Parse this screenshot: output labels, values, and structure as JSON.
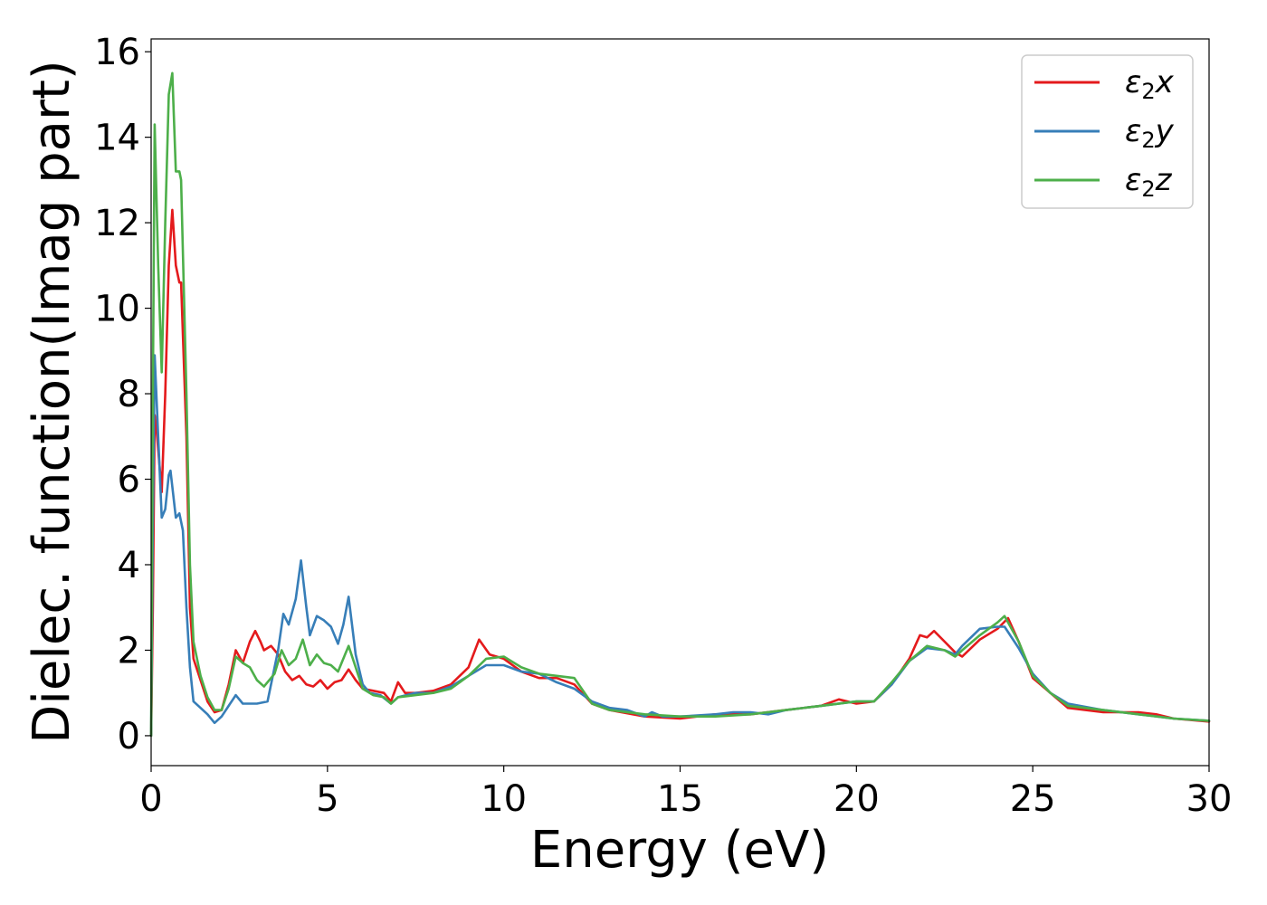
{
  "chart_data": {
    "type": "line",
    "xlabel": "Energy (eV)",
    "ylabel": "Dielec. function(Imag part)",
    "xlim": [
      0,
      30
    ],
    "ylim": [
      -0.7,
      16.3
    ],
    "xticks": [
      0,
      5,
      10,
      15,
      20,
      25,
      30
    ],
    "yticks": [
      0,
      2,
      4,
      6,
      8,
      10,
      12,
      14,
      16
    ],
    "grid": false,
    "legend_position": "top-right",
    "series": [
      {
        "name": "ε2x",
        "legend_base": "ε",
        "legend_sub": "2",
        "legend_suffix": "x",
        "color": "#e41a1c",
        "points": [
          [
            0,
            0
          ],
          [
            0.05,
            3
          ],
          [
            0.1,
            7.5
          ],
          [
            0.15,
            7.2
          ],
          [
            0.3,
            5.7
          ],
          [
            0.4,
            8
          ],
          [
            0.5,
            11
          ],
          [
            0.6,
            12.3
          ],
          [
            0.7,
            11
          ],
          [
            0.8,
            10.6
          ],
          [
            0.85,
            10.6
          ],
          [
            1.0,
            7
          ],
          [
            1.1,
            3
          ],
          [
            1.2,
            1.8
          ],
          [
            1.4,
            1.3
          ],
          [
            1.6,
            0.8
          ],
          [
            1.8,
            0.55
          ],
          [
            2.0,
            0.6
          ],
          [
            2.2,
            1.2
          ],
          [
            2.4,
            2.0
          ],
          [
            2.6,
            1.7
          ],
          [
            2.8,
            2.2
          ],
          [
            2.95,
            2.45
          ],
          [
            3.1,
            2.2
          ],
          [
            3.2,
            2.0
          ],
          [
            3.4,
            2.1
          ],
          [
            3.6,
            1.9
          ],
          [
            3.8,
            1.5
          ],
          [
            4.0,
            1.3
          ],
          [
            4.2,
            1.4
          ],
          [
            4.4,
            1.2
          ],
          [
            4.6,
            1.15
          ],
          [
            4.8,
            1.3
          ],
          [
            5.0,
            1.1
          ],
          [
            5.2,
            1.25
          ],
          [
            5.4,
            1.3
          ],
          [
            5.6,
            1.55
          ],
          [
            5.8,
            1.3
          ],
          [
            6.0,
            1.1
          ],
          [
            6.3,
            1.05
          ],
          [
            6.6,
            1.0
          ],
          [
            6.8,
            0.8
          ],
          [
            7.0,
            1.25
          ],
          [
            7.2,
            1.0
          ],
          [
            7.5,
            1.0
          ],
          [
            8.0,
            1.05
          ],
          [
            8.5,
            1.2
          ],
          [
            9.0,
            1.6
          ],
          [
            9.3,
            2.25
          ],
          [
            9.6,
            1.9
          ],
          [
            10.0,
            1.8
          ],
          [
            10.5,
            1.5
          ],
          [
            11.0,
            1.35
          ],
          [
            11.5,
            1.35
          ],
          [
            12.0,
            1.2
          ],
          [
            12.5,
            0.75
          ],
          [
            13.0,
            0.6
          ],
          [
            14.0,
            0.45
          ],
          [
            15.0,
            0.4
          ],
          [
            16.0,
            0.5
          ],
          [
            17.0,
            0.5
          ],
          [
            18.0,
            0.6
          ],
          [
            19.0,
            0.7
          ],
          [
            19.5,
            0.85
          ],
          [
            20.0,
            0.75
          ],
          [
            20.5,
            0.8
          ],
          [
            21.0,
            1.2
          ],
          [
            21.5,
            1.8
          ],
          [
            21.8,
            2.35
          ],
          [
            22.0,
            2.3
          ],
          [
            22.2,
            2.45
          ],
          [
            22.5,
            2.2
          ],
          [
            22.8,
            1.95
          ],
          [
            23.0,
            1.85
          ],
          [
            23.5,
            2.25
          ],
          [
            24.0,
            2.5
          ],
          [
            24.3,
            2.75
          ],
          [
            24.6,
            2.2
          ],
          [
            25.0,
            1.35
          ],
          [
            25.5,
            1.0
          ],
          [
            26.0,
            0.65
          ],
          [
            27.0,
            0.55
          ],
          [
            28.0,
            0.55
          ],
          [
            28.5,
            0.5
          ],
          [
            29.0,
            0.4
          ],
          [
            30.0,
            0.33
          ]
        ]
      },
      {
        "name": "ε2y",
        "legend_base": "ε",
        "legend_sub": "2",
        "legend_suffix": "y",
        "color": "#377eb8",
        "points": [
          [
            0,
            0
          ],
          [
            0.05,
            5
          ],
          [
            0.1,
            8.9
          ],
          [
            0.2,
            7
          ],
          [
            0.3,
            5.1
          ],
          [
            0.4,
            5.3
          ],
          [
            0.5,
            6.1
          ],
          [
            0.55,
            6.2
          ],
          [
            0.7,
            5.1
          ],
          [
            0.8,
            5.2
          ],
          [
            0.9,
            4.8
          ],
          [
            1.0,
            3
          ],
          [
            1.1,
            1.6
          ],
          [
            1.2,
            0.8
          ],
          [
            1.4,
            0.65
          ],
          [
            1.6,
            0.5
          ],
          [
            1.8,
            0.3
          ],
          [
            2.0,
            0.45
          ],
          [
            2.2,
            0.7
          ],
          [
            2.4,
            0.95
          ],
          [
            2.6,
            0.75
          ],
          [
            3.0,
            0.75
          ],
          [
            3.3,
            0.8
          ],
          [
            3.6,
            2.0
          ],
          [
            3.75,
            2.85
          ],
          [
            3.9,
            2.6
          ],
          [
            4.1,
            3.2
          ],
          [
            4.25,
            4.1
          ],
          [
            4.4,
            3.0
          ],
          [
            4.5,
            2.35
          ],
          [
            4.7,
            2.8
          ],
          [
            4.9,
            2.7
          ],
          [
            5.1,
            2.55
          ],
          [
            5.3,
            2.15
          ],
          [
            5.45,
            2.6
          ],
          [
            5.6,
            3.25
          ],
          [
            5.8,
            1.9
          ],
          [
            6.0,
            1.2
          ],
          [
            6.2,
            1.0
          ],
          [
            6.5,
            0.95
          ],
          [
            6.8,
            0.75
          ],
          [
            7.0,
            0.9
          ],
          [
            7.5,
            1.0
          ],
          [
            8.0,
            1.0
          ],
          [
            8.5,
            1.15
          ],
          [
            9.0,
            1.4
          ],
          [
            9.5,
            1.65
          ],
          [
            10.0,
            1.65
          ],
          [
            10.5,
            1.5
          ],
          [
            11.0,
            1.45
          ],
          [
            11.5,
            1.25
          ],
          [
            12.0,
            1.1
          ],
          [
            12.5,
            0.8
          ],
          [
            13.0,
            0.65
          ],
          [
            13.5,
            0.6
          ],
          [
            14.0,
            0.45
          ],
          [
            14.2,
            0.55
          ],
          [
            14.5,
            0.45
          ],
          [
            15.0,
            0.45
          ],
          [
            16.0,
            0.5
          ],
          [
            16.5,
            0.55
          ],
          [
            17.0,
            0.55
          ],
          [
            17.5,
            0.5
          ],
          [
            18.0,
            0.6
          ],
          [
            19.0,
            0.7
          ],
          [
            20.0,
            0.8
          ],
          [
            20.5,
            0.8
          ],
          [
            21.0,
            1.2
          ],
          [
            21.5,
            1.75
          ],
          [
            22.0,
            2.05
          ],
          [
            22.5,
            2.0
          ],
          [
            22.8,
            1.9
          ],
          [
            23.0,
            2.1
          ],
          [
            23.5,
            2.5
          ],
          [
            24.0,
            2.55
          ],
          [
            24.2,
            2.55
          ],
          [
            24.6,
            2.05
          ],
          [
            25.0,
            1.45
          ],
          [
            25.5,
            1.0
          ],
          [
            26.0,
            0.75
          ],
          [
            27.0,
            0.6
          ],
          [
            28.0,
            0.5
          ],
          [
            29.0,
            0.4
          ],
          [
            30.0,
            0.35
          ]
        ]
      },
      {
        "name": "ε2z",
        "legend_base": "ε",
        "legend_sub": "2",
        "legend_suffix": "z",
        "color": "#4daf4a",
        "points": [
          [
            0,
            0
          ],
          [
            0.05,
            8
          ],
          [
            0.1,
            14.3
          ],
          [
            0.2,
            11
          ],
          [
            0.3,
            8.5
          ],
          [
            0.4,
            12
          ],
          [
            0.5,
            15
          ],
          [
            0.6,
            15.5
          ],
          [
            0.7,
            13.2
          ],
          [
            0.8,
            13.2
          ],
          [
            0.85,
            13.0
          ],
          [
            1.0,
            8
          ],
          [
            1.1,
            4
          ],
          [
            1.2,
            2.2
          ],
          [
            1.4,
            1.4
          ],
          [
            1.6,
            0.9
          ],
          [
            1.8,
            0.6
          ],
          [
            2.0,
            0.6
          ],
          [
            2.2,
            1.1
          ],
          [
            2.4,
            1.85
          ],
          [
            2.6,
            1.7
          ],
          [
            2.8,
            1.6
          ],
          [
            3.0,
            1.3
          ],
          [
            3.2,
            1.15
          ],
          [
            3.5,
            1.45
          ],
          [
            3.7,
            2.0
          ],
          [
            3.9,
            1.65
          ],
          [
            4.1,
            1.8
          ],
          [
            4.3,
            2.25
          ],
          [
            4.5,
            1.65
          ],
          [
            4.7,
            1.9
          ],
          [
            4.9,
            1.7
          ],
          [
            5.1,
            1.65
          ],
          [
            5.3,
            1.5
          ],
          [
            5.6,
            2.1
          ],
          [
            5.8,
            1.6
          ],
          [
            6.0,
            1.1
          ],
          [
            6.3,
            0.95
          ],
          [
            6.6,
            0.9
          ],
          [
            6.8,
            0.75
          ],
          [
            7.0,
            0.9
          ],
          [
            7.5,
            0.95
          ],
          [
            8.0,
            1.0
          ],
          [
            8.5,
            1.1
          ],
          [
            9.0,
            1.4
          ],
          [
            9.5,
            1.8
          ],
          [
            10.0,
            1.85
          ],
          [
            10.5,
            1.6
          ],
          [
            11.0,
            1.45
          ],
          [
            11.5,
            1.4
          ],
          [
            12.0,
            1.35
          ],
          [
            12.5,
            0.75
          ],
          [
            13.0,
            0.6
          ],
          [
            14.0,
            0.5
          ],
          [
            15.0,
            0.45
          ],
          [
            16.0,
            0.45
          ],
          [
            17.0,
            0.5
          ],
          [
            18.0,
            0.6
          ],
          [
            19.0,
            0.7
          ],
          [
            20.0,
            0.8
          ],
          [
            20.5,
            0.8
          ],
          [
            21.0,
            1.25
          ],
          [
            21.5,
            1.75
          ],
          [
            22.0,
            2.1
          ],
          [
            22.5,
            2.0
          ],
          [
            22.8,
            1.85
          ],
          [
            23.0,
            2.0
          ],
          [
            23.5,
            2.35
          ],
          [
            24.0,
            2.65
          ],
          [
            24.2,
            2.8
          ],
          [
            24.6,
            2.2
          ],
          [
            25.0,
            1.4
          ],
          [
            25.5,
            1.0
          ],
          [
            26.0,
            0.7
          ],
          [
            27.0,
            0.6
          ],
          [
            28.0,
            0.5
          ],
          [
            29.0,
            0.4
          ],
          [
            30.0,
            0.35
          ]
        ]
      }
    ]
  }
}
